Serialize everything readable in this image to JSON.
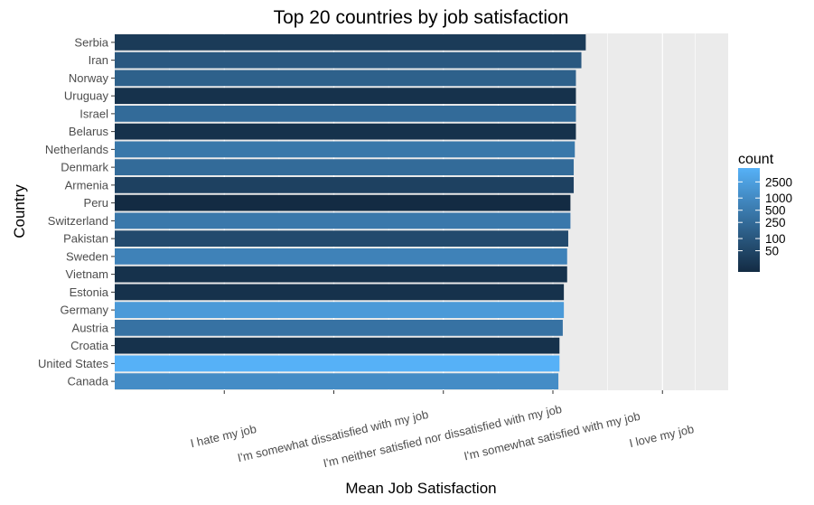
{
  "chart_data": {
    "type": "bar",
    "orientation": "horizontal",
    "title": "Top 20 countries by job satisfaction",
    "xlabel": "Mean Job Satisfaction",
    "ylabel": "Country",
    "x_tick_labels": [
      "I hate my job",
      "I'm somewhat dissatisfied with my job",
      "I'm neither satisfied nor dissatisfied with my job",
      "I'm somewhat satisfied with my job",
      "I love my job"
    ],
    "x_tick_values": [
      0,
      1,
      2,
      3,
      4
    ],
    "xlim": [
      -1,
      4.6
    ],
    "categories": [
      "Serbia",
      "Iran",
      "Norway",
      "Uruguay",
      "Israel",
      "Belarus",
      "Netherlands",
      "Denmark",
      "Armenia",
      "Peru",
      "Switzerland",
      "Pakistan",
      "Sweden",
      "Vietnam",
      "Estonia",
      "Germany",
      "Austria",
      "Croatia",
      "United States",
      "Canada"
    ],
    "values": [
      3.3,
      3.26,
      3.21,
      3.21,
      3.21,
      3.21,
      3.2,
      3.19,
      3.19,
      3.16,
      3.16,
      3.14,
      3.13,
      3.13,
      3.1,
      3.1,
      3.09,
      3.06,
      3.06,
      3.05
    ],
    "counts": [
      30,
      110,
      160,
      20,
      250,
      20,
      440,
      250,
      40,
      15,
      450,
      60,
      700,
      20,
      20,
      2000,
      350,
      20,
      5500,
      1100
    ],
    "legend": {
      "title": "count",
      "position": "right",
      "scale": "log",
      "breaks": [
        2500,
        1000,
        500,
        250,
        100,
        50
      ],
      "break_labels": [
        "2500",
        "1000",
        "500",
        "250",
        "100",
        "50"
      ],
      "range": [
        15,
        5500
      ],
      "color_low": "#132b43",
      "color_high": "#56b1f7"
    },
    "grid": true,
    "panel_background": "#ebebeb",
    "grid_color": "#ffffff"
  }
}
